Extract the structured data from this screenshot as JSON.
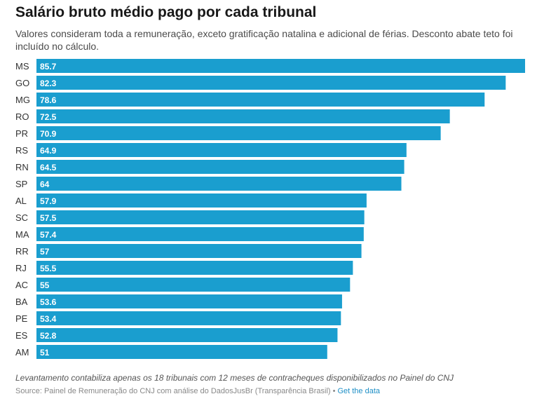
{
  "chart_data": {
    "type": "bar",
    "orientation": "horizontal",
    "title": "Salário bruto médio pago por cada tribunal",
    "subtitle": "Valores consideram toda a remuneração, exceto gratificação natalina e adicional de férias. Desconto abate teto foi incluído no cálculo.",
    "categories": [
      "MS",
      "GO",
      "MG",
      "RO",
      "PR",
      "RS",
      "RN",
      "SP",
      "AL",
      "SC",
      "MA",
      "RR",
      "RJ",
      "AC",
      "BA",
      "PE",
      "ES",
      "AM"
    ],
    "values": [
      85.7,
      82.3,
      78.6,
      72.5,
      70.9,
      64.9,
      64.5,
      64,
      57.9,
      57.5,
      57.4,
      57,
      55.5,
      55,
      53.6,
      53.4,
      52.8,
      51
    ],
    "labels": [
      "85.7",
      "82.3",
      "78.6",
      "72.5",
      "70.9",
      "64.9",
      "64.5",
      "64",
      "57.9",
      "57.5",
      "57.4",
      "57",
      "55.5",
      "55",
      "53.6",
      "53.4",
      "52.8",
      "51"
    ],
    "xlim": [
      0,
      85.7
    ],
    "bar_color": "#1a9ecf",
    "label_color": "#ffffff",
    "xlabel": "",
    "ylabel": ""
  },
  "footer": {
    "note": "Levantamento contabiliza apenas os 18 tribunais com 12 meses de contracheques disponibilizados no Painel do CNJ",
    "source": "Source: Painel de Remuneração do CNJ com análise do DadosJusBr (Transparência Brasil)",
    "separator": "•",
    "get_data": "Get the data"
  }
}
